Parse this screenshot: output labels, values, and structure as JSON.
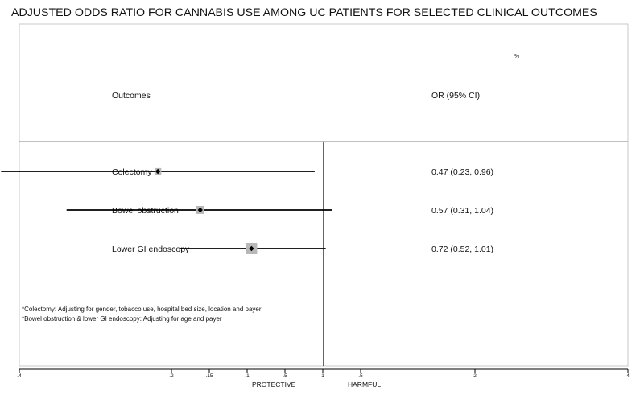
{
  "chart_data": {
    "type": "forest",
    "title": "ADJUSTED ODDS RATIO FOR CANNABIS USE AMONG UC PATIENTS FOR SELECTED CLINICAL OUTCOMES",
    "corner_mark": "%",
    "header": {
      "left": "Outcomes",
      "right": "OR (95% CI)"
    },
    "rows": [
      {
        "label": "Colectomy",
        "or": 0.47,
        "lo": 0.23,
        "hi": 0.96,
        "text": "0.47 (0.23, 0.96)",
        "box_weight": 0.35
      },
      {
        "label": "Bowel obstruction",
        "or": 0.57,
        "lo": 0.31,
        "hi": 1.04,
        "text": "0.57 (0.31, 1.04)",
        "box_weight": 0.55
      },
      {
        "label": "Lower GI endoscopy",
        "or": 0.72,
        "lo": 0.52,
        "hi": 1.01,
        "text": "0.72 (0.52, 1.01)",
        "box_weight": 1.0
      }
    ],
    "footnotes": [
      "*Colectomy: Adjusting for gender, tobacco use, hospital bed size, location and payer",
      "*Bowel obstruction & lower GI endoscopy: Adjusting for age and payer"
    ],
    "x_ticks": [
      ".4",
      ".2",
      ".15",
      ".1",
      ".5",
      "1",
      ".5",
      "2",
      "4"
    ],
    "x_axis_range": [
      0.25,
      4
    ],
    "x_scale": "log",
    "null_value": 1,
    "direction_labels": {
      "left": "PROTECTIVE",
      "right": "HARMFUL"
    },
    "colors": {
      "line": "#000000",
      "box": "#b8b8b8",
      "separator": "#9a9a9a"
    }
  }
}
